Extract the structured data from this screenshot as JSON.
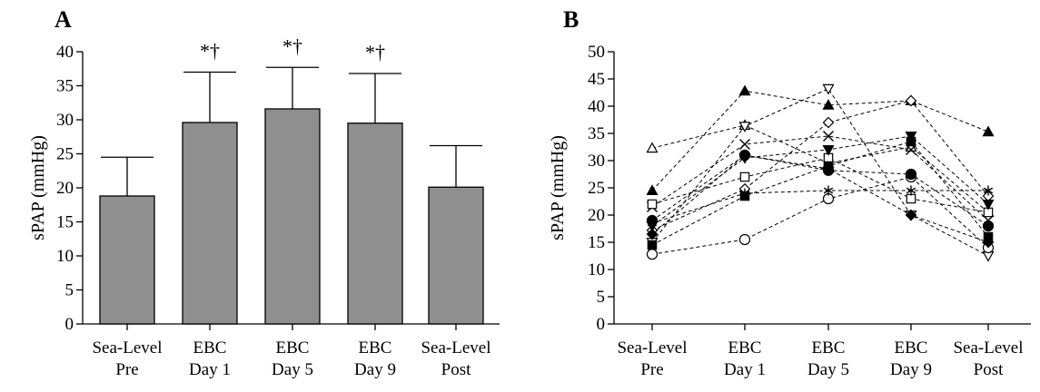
{
  "chart_data": [
    {
      "panel_label": "A",
      "type": "bar",
      "ylabel": "sPAP (mmHg)",
      "ylim": [
        0,
        40
      ],
      "yticks": [
        0,
        5,
        10,
        15,
        20,
        25,
        30,
        35,
        40
      ],
      "categories": [
        [
          "Sea-Level",
          "Pre"
        ],
        [
          "EBC",
          "Day 1"
        ],
        [
          "EBC",
          "Day 5"
        ],
        [
          "EBC",
          "Day 9"
        ],
        [
          "Sea-Level",
          "Post"
        ]
      ],
      "values": [
        18.8,
        29.6,
        31.6,
        29.5,
        20.1
      ],
      "error_upper": [
        24.5,
        37.0,
        37.7,
        36.8,
        26.2
      ],
      "annotations": [
        "",
        "*†",
        "*†",
        "*†",
        ""
      ],
      "bar_fill": "#8f8f8f",
      "grid": false
    },
    {
      "panel_label": "B",
      "type": "line",
      "ylabel": "sPAP (mmHg)",
      "ylim": [
        0,
        50
      ],
      "yticks": [
        0,
        5,
        10,
        15,
        20,
        25,
        30,
        35,
        40,
        45,
        50
      ],
      "categories": [
        [
          "Sea-Level",
          "Pre"
        ],
        [
          "EBC",
          "Day 1"
        ],
        [
          "EBC",
          "Day 5"
        ],
        [
          "EBC",
          "Day 9"
        ],
        [
          "Sea-Level",
          "Post"
        ]
      ],
      "line_style": "dashed",
      "grid": false,
      "series": [
        {
          "marker": "triangle-filled",
          "values": [
            24.5,
            42.8,
            40.2,
            41.0,
            35.3
          ]
        },
        {
          "marker": "triangle-open",
          "values": [
            32.3,
            36.5,
            29.5,
            32.5,
            20.5
          ]
        },
        {
          "marker": "triangle-down-open",
          "values": [
            15.0,
            36.3,
            43.2,
            20.0,
            12.5
          ]
        },
        {
          "marker": "diamond-open",
          "values": [
            17.2,
            24.8,
            37.0,
            41.0,
            23.5
          ]
        },
        {
          "marker": "x",
          "values": [
            21.5,
            33.0,
            34.5,
            32.0,
            19.0
          ]
        },
        {
          "marker": "square-open",
          "values": [
            22.0,
            27.0,
            30.5,
            23.0,
            20.5
          ]
        },
        {
          "marker": "circle-open",
          "values": [
            12.8,
            15.5,
            23.0,
            27.0,
            14.0
          ]
        },
        {
          "marker": "circle-filled",
          "values": [
            19.0,
            31.0,
            28.2,
            27.5,
            18.0
          ]
        },
        {
          "marker": "square-filled",
          "values": [
            14.5,
            23.5,
            29.0,
            33.5,
            16.0
          ]
        },
        {
          "marker": "triangle-down-filled",
          "values": [
            18.0,
            30.5,
            32.0,
            34.5,
            22.0
          ]
        },
        {
          "marker": "star",
          "values": [
            18.5,
            24.0,
            24.5,
            24.5,
            24.5
          ]
        },
        {
          "marker": "diamond-filled",
          "values": [
            16.5,
            31.0,
            28.5,
            20.0,
            15.0
          ]
        }
      ]
    }
  ]
}
